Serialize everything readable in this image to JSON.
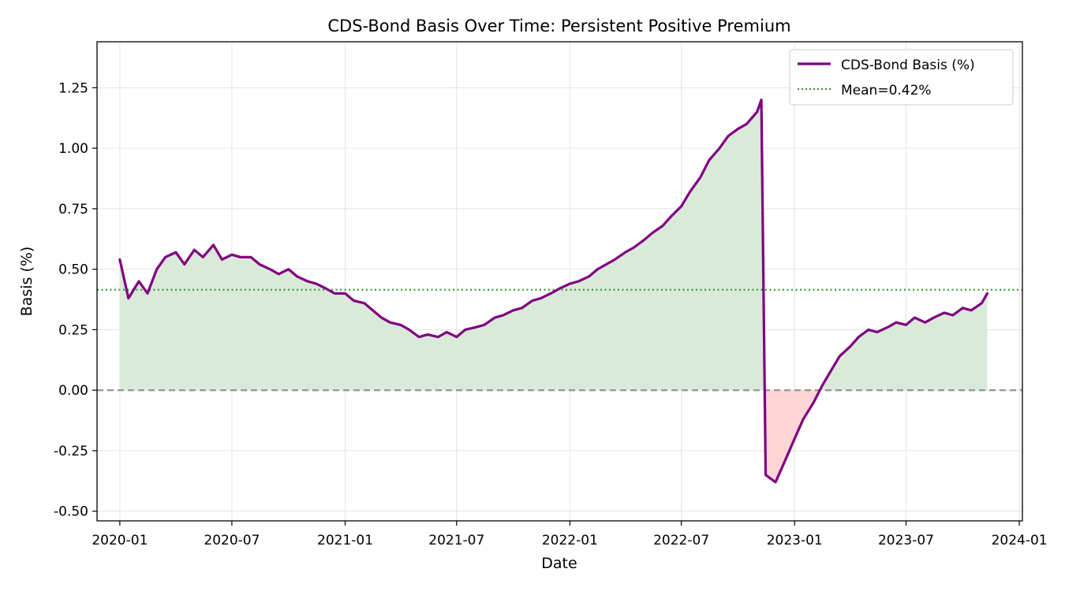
{
  "chart_data": {
    "type": "line",
    "title": "CDS-Bond Basis Over Time: Persistent Positive Premium",
    "xlabel": "Date",
    "ylabel": "Basis (%)",
    "xlim": [
      "2019-11-25",
      "2024-01-06"
    ],
    "ylim": [
      -0.54,
      1.44
    ],
    "x_ticks": [
      "2020-01",
      "2020-07",
      "2021-01",
      "2021-07",
      "2022-01",
      "2022-07",
      "2023-01",
      "2023-07",
      "2024-01"
    ],
    "y_ticks": [
      -0.5,
      -0.25,
      0.0,
      0.25,
      0.5,
      0.75,
      1.0,
      1.25
    ],
    "y_tick_labels": [
      "-0.50",
      "-0.25",
      "0.00",
      "0.25",
      "0.50",
      "0.75",
      "1.00",
      "1.25"
    ],
    "grid": true,
    "legend_position": "top-right",
    "series": [
      {
        "name": "CDS-Bond Basis (%)",
        "color": "#800080",
        "style": "solid",
        "fill_positive_color": "#d9ead9",
        "fill_negative_color": "#ffd6d6",
        "x": [
          "2020-01-01",
          "2020-01-15",
          "2020-02-01",
          "2020-02-15",
          "2020-03-01",
          "2020-03-15",
          "2020-04-01",
          "2020-04-15",
          "2020-05-01",
          "2020-05-15",
          "2020-06-01",
          "2020-06-15",
          "2020-07-01",
          "2020-07-15",
          "2020-08-01",
          "2020-08-15",
          "2020-09-01",
          "2020-09-15",
          "2020-10-01",
          "2020-10-15",
          "2020-11-01",
          "2020-11-15",
          "2020-12-01",
          "2020-12-15",
          "2021-01-01",
          "2021-01-15",
          "2021-02-01",
          "2021-02-15",
          "2021-03-01",
          "2021-03-15",
          "2021-04-01",
          "2021-04-15",
          "2021-05-01",
          "2021-05-15",
          "2021-06-01",
          "2021-06-15",
          "2021-07-01",
          "2021-07-15",
          "2021-08-01",
          "2021-08-15",
          "2021-09-01",
          "2021-09-15",
          "2021-10-01",
          "2021-10-15",
          "2021-11-01",
          "2021-11-15",
          "2021-12-01",
          "2021-12-15",
          "2022-01-01",
          "2022-01-15",
          "2022-02-01",
          "2022-02-15",
          "2022-03-01",
          "2022-03-15",
          "2022-04-01",
          "2022-04-15",
          "2022-05-01",
          "2022-05-15",
          "2022-06-01",
          "2022-06-15",
          "2022-07-01",
          "2022-07-15",
          "2022-08-01",
          "2022-08-15",
          "2022-09-01",
          "2022-09-15",
          "2022-10-01",
          "2022-10-15",
          "2022-11-01",
          "2022-11-08",
          "2022-11-15",
          "2022-12-01",
          "2022-12-15",
          "2023-01-01",
          "2023-01-15",
          "2023-02-01",
          "2023-02-15",
          "2023-03-01",
          "2023-03-15",
          "2023-04-01",
          "2023-04-15",
          "2023-05-01",
          "2023-05-15",
          "2023-06-01",
          "2023-06-15",
          "2023-07-01",
          "2023-07-15",
          "2023-08-01",
          "2023-08-15",
          "2023-09-01",
          "2023-09-15",
          "2023-10-01",
          "2023-10-15",
          "2023-11-01",
          "2023-11-10"
        ],
        "y": [
          0.54,
          0.38,
          0.45,
          0.4,
          0.5,
          0.55,
          0.57,
          0.52,
          0.58,
          0.55,
          0.6,
          0.54,
          0.56,
          0.55,
          0.55,
          0.52,
          0.5,
          0.48,
          0.5,
          0.47,
          0.45,
          0.44,
          0.42,
          0.4,
          0.4,
          0.37,
          0.36,
          0.33,
          0.3,
          0.28,
          0.27,
          0.25,
          0.22,
          0.23,
          0.22,
          0.24,
          0.22,
          0.25,
          0.26,
          0.27,
          0.3,
          0.31,
          0.33,
          0.34,
          0.37,
          0.38,
          0.4,
          0.42,
          0.44,
          0.45,
          0.47,
          0.5,
          0.52,
          0.54,
          0.57,
          0.59,
          0.62,
          0.65,
          0.68,
          0.72,
          0.76,
          0.82,
          0.88,
          0.95,
          1.0,
          1.05,
          1.08,
          1.1,
          1.15,
          1.2,
          -0.35,
          -0.38,
          -0.3,
          -0.2,
          -0.12,
          -0.05,
          0.02,
          0.08,
          0.14,
          0.18,
          0.22,
          0.25,
          0.24,
          0.26,
          0.28,
          0.27,
          0.3,
          0.28,
          0.3,
          0.32,
          0.31,
          0.34,
          0.33,
          0.36,
          0.4
        ]
      },
      {
        "name": "Mean=0.42%",
        "color": "#3a9a3a",
        "style": "dotted",
        "value": 0.415
      }
    ],
    "reference_lines": [
      {
        "value": 0.0,
        "color": "#999999",
        "style": "dashed"
      }
    ]
  }
}
